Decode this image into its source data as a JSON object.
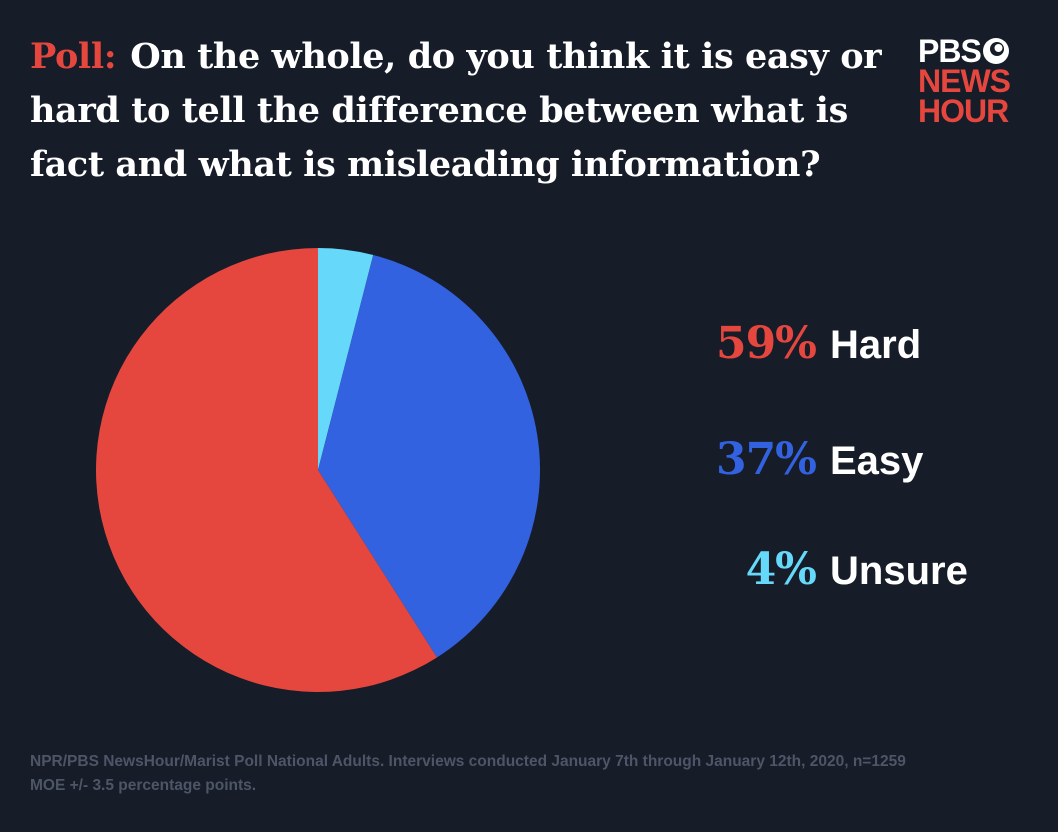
{
  "title_prefix": "Poll:",
  "title": "On the whole, do you think it is easy or hard to tell the difference between what is fact and what is misleading information?",
  "logo": {
    "line1": "PBS",
    "line2": "NEWS",
    "line3": "HOUR"
  },
  "source": "NPR/PBS NewsHour/Marist Poll National Adults. Interviews conducted January 7th through January 12th, 2020, n=1259 MOE +/- 3.5 percentage points.",
  "colors": {
    "background": "#161c28",
    "hard": "#e5473f",
    "easy": "#3262e0",
    "unsure": "#66d8f9",
    "text": "#ffffff",
    "source": "#4d5567"
  },
  "chart_data": {
    "type": "pie",
    "slices": [
      {
        "label": "Hard",
        "value": 59,
        "pct_label": "59%",
        "color": "#e5473f"
      },
      {
        "label": "Easy",
        "value": 37,
        "pct_label": "37%",
        "color": "#3262e0"
      },
      {
        "label": "Unsure",
        "value": 4,
        "pct_label": "4%",
        "color": "#66d8f9"
      }
    ],
    "start_angle_deg": 0,
    "direction": "clockwise",
    "draw_order": [
      "Unsure",
      "Easy",
      "Hard"
    ],
    "legend_placement": "right"
  }
}
